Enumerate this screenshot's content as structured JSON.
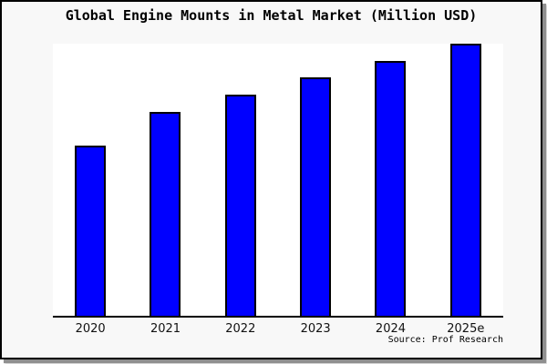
{
  "title": "Global Engine Mounts in Metal Market (Million USD)",
  "source_note": "Source: Prof Research",
  "colors": {
    "page_background": "#f8f8f8",
    "plot_background": "#ffffff",
    "bar_fill": "#0000ff",
    "bar_border": "#000000",
    "axis": "#000000",
    "frame_border": "#000000",
    "frame_shadow": "#8f8f8f"
  },
  "chart_data": {
    "type": "bar",
    "title": "Global Engine Mounts in Metal Market (Million USD)",
    "categories": [
      "2020",
      "2021",
      "2022",
      "2023",
      "2024",
      "2025e"
    ],
    "values": [
      62.5,
      74.9,
      81.3,
      87.6,
      93.6,
      100
    ],
    "values_unit": "relative index (tallest bar 2025e = 100); y-axis has no tick labels in the chart",
    "series_color": "#0000ff",
    "xlabel": "",
    "ylabel": "",
    "ylim": [
      0,
      100.7
    ],
    "grid": false,
    "legend": false,
    "spines": "bottom axis only",
    "annotation": "Source: Prof Research"
  }
}
